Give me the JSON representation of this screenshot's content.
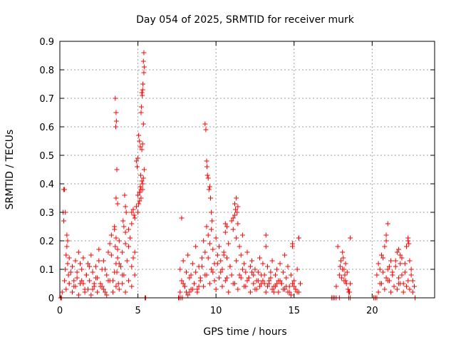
{
  "chart_data": {
    "type": "scatter",
    "title": "Day 054 of 2025, SRMTID for receiver murk",
    "xlabel": "GPS time / hours",
    "ylabel": "SRMTID / TECUs",
    "xlim": [
      0,
      24
    ],
    "ylim": [
      0,
      0.9
    ],
    "grid": true,
    "marker": "+",
    "color": "#ff0000",
    "x_ticks": [
      0,
      5,
      10,
      15,
      20
    ],
    "x_tick_labels": [
      "0",
      "5",
      "10",
      "15",
      "20"
    ],
    "y_ticks": [
      0,
      0.1,
      0.2,
      0.3,
      0.4,
      0.5,
      0.6,
      0.7,
      0.8,
      0.9
    ],
    "y_tick_labels": [
      "0",
      "0.1",
      "0.2",
      "0.3",
      "0.4",
      "0.5",
      "0.6",
      "0.7",
      "0.8",
      "0.9"
    ],
    "series": [
      {
        "x": [
          0.05,
          0.1,
          0.15,
          0.3,
          0.35,
          0.4,
          0.45,
          0.5,
          0.55,
          0.6,
          0.7,
          0.8,
          0.9,
          1.0,
          1.1,
          1.2,
          1.3,
          1.4,
          1.5,
          1.6,
          1.7,
          1.8,
          1.9,
          2.0,
          2.1,
          2.2,
          2.3,
          2.4,
          2.5,
          2.6,
          2.7,
          2.8,
          2.9,
          3.0,
          3.1,
          3.2,
          3.3,
          3.4,
          3.5,
          3.55,
          3.6,
          3.65,
          3.7,
          3.75,
          3.8,
          3.9,
          4.0,
          4.1,
          4.2,
          4.3,
          4.4,
          4.5,
          4.6,
          4.7,
          4.8,
          4.9,
          5.0,
          5.05,
          5.1,
          5.15,
          5.2,
          5.25,
          5.3,
          5.35,
          5.4,
          5.5,
          0.5,
          0.6,
          0.9,
          1.1,
          1.3,
          1.5,
          1.7,
          1.9,
          2.1,
          2.3,
          2.5,
          2.7,
          2.9,
          3.1,
          3.3,
          3.5,
          3.6,
          3.7,
          3.8,
          4.0,
          4.2,
          4.4,
          4.6,
          4.8,
          5.0,
          5.1,
          5.2,
          5.3,
          0.4,
          0.6,
          0.8,
          1.0,
          1.2,
          1.4,
          1.6,
          1.8,
          2.0,
          2.2,
          2.4,
          2.6,
          2.8,
          3.0,
          3.2,
          3.4,
          3.6,
          3.8,
          4.0,
          4.2,
          4.4,
          4.6,
          4.8,
          3.55,
          3.6,
          3.62,
          3.58,
          3.65,
          3.6,
          3.7,
          3.5,
          4.15,
          4.2,
          4.25,
          4.05,
          4.1,
          4.6,
          4.7,
          4.75,
          4.9,
          4.95,
          5.0,
          5.05,
          5.1,
          5.15,
          5.2,
          5.22,
          5.25,
          5.28,
          5.3,
          5.32,
          5.35,
          5.38,
          5.12,
          5.18,
          5.25,
          5.3,
          5.35,
          5.38,
          5.4,
          0.3,
          0.35,
          0.25,
          0.45,
          7.6,
          7.7,
          7.8,
          7.9,
          8.0,
          8.1,
          8.2,
          8.3,
          8.4,
          8.5,
          8.6,
          8.7,
          8.8,
          8.9,
          9.0,
          9.1,
          9.2,
          9.3,
          9.4,
          9.5,
          9.6,
          9.7,
          9.8,
          9.9,
          10.0,
          10.1,
          10.2,
          10.3,
          10.4,
          10.5,
          10.6,
          10.7,
          10.8,
          10.9,
          11.0,
          11.1,
          11.2,
          11.3,
          11.4,
          11.5,
          11.6,
          11.7,
          11.8,
          11.9,
          12.0,
          12.1,
          12.2,
          12.3,
          12.4,
          12.5,
          12.6,
          12.7,
          12.8,
          12.9,
          13.0,
          13.1,
          13.2,
          13.3,
          13.4,
          13.5,
          13.6,
          13.7,
          13.8,
          13.9,
          14.0,
          14.1,
          14.2,
          14.3,
          14.4,
          14.5,
          14.6,
          14.7,
          14.8,
          14.9,
          15.0,
          15.1,
          15.2,
          15.3,
          15.4,
          7.9,
          8.1,
          8.3,
          8.5,
          8.7,
          8.9,
          9.1,
          9.3,
          9.5,
          9.7,
          9.9,
          10.1,
          10.3,
          10.5,
          10.7,
          10.9,
          11.1,
          11.3,
          11.5,
          11.7,
          11.9,
          12.1,
          12.3,
          12.5,
          12.7,
          12.9,
          13.1,
          13.3,
          13.5,
          13.7,
          13.9,
          14.1,
          14.3,
          14.5,
          14.7,
          14.9,
          15.1,
          15.3,
          7.7,
          8.0,
          8.2,
          8.4,
          8.6,
          8.8,
          9.0,
          9.2,
          9.4,
          9.6,
          9.8,
          10.0,
          10.2,
          10.4,
          10.6,
          10.8,
          11.0,
          11.2,
          11.4,
          11.6,
          11.8,
          12.0,
          12.2,
          12.4,
          12.6,
          12.8,
          13.0,
          13.2,
          13.4,
          13.6,
          13.8,
          14.0,
          14.2,
          14.4,
          14.6,
          14.8,
          15.0,
          15.2,
          7.8,
          9.3,
          9.35,
          9.4,
          9.42,
          9.45,
          9.5,
          9.55,
          9.6,
          9.65,
          9.7,
          9.75,
          11.2,
          11.3,
          11.35,
          11.4,
          11.1,
          11.25,
          10.6,
          10.7,
          13.2,
          15.3,
          14.9,
          17.5,
          17.7,
          17.9,
          18.0,
          18.1,
          18.2,
          18.3,
          18.4,
          18.5,
          18.6,
          17.8,
          17.95,
          18.05,
          18.15,
          18.25,
          18.35,
          18.45,
          18.55,
          18.1,
          18.2,
          18.3,
          17.9,
          18.6,
          20.2,
          20.3,
          20.4,
          20.5,
          20.6,
          20.7,
          20.8,
          20.9,
          21.0,
          21.1,
          21.2,
          21.3,
          21.4,
          21.5,
          21.6,
          21.7,
          21.8,
          21.9,
          22.0,
          22.1,
          22.2,
          22.3,
          22.4,
          22.5,
          22.6,
          22.7,
          20.4,
          20.6,
          20.8,
          21.0,
          21.2,
          21.4,
          21.6,
          21.8,
          22.0,
          22.2,
          22.4,
          22.6,
          20.5,
          20.7,
          20.9,
          21.1,
          21.3,
          21.5,
          21.7,
          21.9,
          22.1,
          22.3,
          22.5,
          22.7,
          20.9,
          21.0,
          22.3,
          22.35,
          21.7,
          21.8,
          0.05,
          0.1,
          0.2,
          0.25,
          5.45,
          7.65,
          7.75,
          7.85,
          17.4,
          17.5,
          17.6,
          17.7,
          18.5,
          18.6,
          20.1,
          20.2,
          20.3,
          22.75
        ],
        "y": [
          0.0,
          0.0,
          0.02,
          0.06,
          0.1,
          0.15,
          0.22,
          0.12,
          0.08,
          0.05,
          0.09,
          0.11,
          0.04,
          0.13,
          0.07,
          0.16,
          0.05,
          0.1,
          0.14,
          0.03,
          0.08,
          0.12,
          0.06,
          0.15,
          0.09,
          0.04,
          0.11,
          0.07,
          0.17,
          0.05,
          0.1,
          0.13,
          0.02,
          0.08,
          0.16,
          0.19,
          0.22,
          0.06,
          0.25,
          0.18,
          0.12,
          0.09,
          0.14,
          0.05,
          0.2,
          0.11,
          0.16,
          0.08,
          0.23,
          0.13,
          0.18,
          0.21,
          0.26,
          0.14,
          0.28,
          0.32,
          0.36,
          0.33,
          0.37,
          0.39,
          0.35,
          0.41,
          0.38,
          0.42,
          0.45,
          0.0,
          0.2,
          0.14,
          0.06,
          0.09,
          0.12,
          0.05,
          0.08,
          0.11,
          0.03,
          0.07,
          0.13,
          0.04,
          0.1,
          0.06,
          0.15,
          0.09,
          0.21,
          0.17,
          0.12,
          0.08,
          0.19,
          0.24,
          0.11,
          0.16,
          0.3,
          0.34,
          0.38,
          0.4,
          0.03,
          0.05,
          0.02,
          0.04,
          0.01,
          0.06,
          0.02,
          0.03,
          0.01,
          0.05,
          0.02,
          0.04,
          0.03,
          0.01,
          0.06,
          0.02,
          0.04,
          0.03,
          0.05,
          0.02,
          0.06,
          0.04,
          0.08,
          0.7,
          0.65,
          0.62,
          0.6,
          0.45,
          0.35,
          0.33,
          0.24,
          0.36,
          0.32,
          0.3,
          0.27,
          0.25,
          0.3,
          0.31,
          0.29,
          0.48,
          0.46,
          0.49,
          0.57,
          0.55,
          0.53,
          0.65,
          0.67,
          0.72,
          0.71,
          0.73,
          0.75,
          0.83,
          0.86,
          0.37,
          0.43,
          0.52,
          0.54,
          0.61,
          0.79,
          0.81,
          0.38,
          0.3,
          0.27,
          0.18,
          0.0,
          0.1,
          0.06,
          0.13,
          0.04,
          0.09,
          0.15,
          0.02,
          0.08,
          0.12,
          0.05,
          0.18,
          0.03,
          0.11,
          0.07,
          0.14,
          0.2,
          0.16,
          0.25,
          0.22,
          0.19,
          0.24,
          0.17,
          0.12,
          0.21,
          0.15,
          0.18,
          0.13,
          0.1,
          0.16,
          0.23,
          0.14,
          0.19,
          0.11,
          0.27,
          0.24,
          0.29,
          0.21,
          0.26,
          0.18,
          0.15,
          0.22,
          0.12,
          0.09,
          0.16,
          0.07,
          0.11,
          0.13,
          0.08,
          0.1,
          0.06,
          0.09,
          0.14,
          0.05,
          0.12,
          0.08,
          0.18,
          0.11,
          0.06,
          0.09,
          0.13,
          0.04,
          0.08,
          0.1,
          0.06,
          0.12,
          0.05,
          0.09,
          0.15,
          0.07,
          0.11,
          0.04,
          0.08,
          0.19,
          0.06,
          0.03,
          0.1,
          0.21,
          0.05,
          0.05,
          0.02,
          0.07,
          0.03,
          0.09,
          0.04,
          0.11,
          0.08,
          0.14,
          0.1,
          0.06,
          0.12,
          0.09,
          0.15,
          0.07,
          0.11,
          0.05,
          0.13,
          0.08,
          0.1,
          0.04,
          0.07,
          0.09,
          0.03,
          0.06,
          0.08,
          0.05,
          0.04,
          0.07,
          0.02,
          0.05,
          0.06,
          0.03,
          0.04,
          0.02,
          0.05,
          0.03,
          0.02,
          0.02,
          0.04,
          0.01,
          0.03,
          0.05,
          0.02,
          0.06,
          0.04,
          0.08,
          0.05,
          0.09,
          0.03,
          0.07,
          0.04,
          0.06,
          0.02,
          0.08,
          0.05,
          0.03,
          0.07,
          0.04,
          0.06,
          0.02,
          0.05,
          0.03,
          0.04,
          0.06,
          0.02,
          0.05,
          0.03,
          0.04,
          0.02,
          0.05,
          0.03,
          0.02,
          0.01,
          0.04,
          0.02,
          0.28,
          0.61,
          0.59,
          0.48,
          0.46,
          0.43,
          0.42,
          0.38,
          0.39,
          0.35,
          0.3,
          0.27,
          0.33,
          0.35,
          0.3,
          0.32,
          0.28,
          0.31,
          0.26,
          0.25,
          0.22,
          0.21,
          0.18,
          0.0,
          0.04,
          0.08,
          0.13,
          0.1,
          0.06,
          0.12,
          0.09,
          0.02,
          0.05,
          0.18,
          0.11,
          0.07,
          0.14,
          0.08,
          0.05,
          0.03,
          0.02,
          0.16,
          0.1,
          0.06,
          0.0,
          0.21,
          0.0,
          0.08,
          0.12,
          0.05,
          0.15,
          0.09,
          0.18,
          0.2,
          0.1,
          0.06,
          0.13,
          0.08,
          0.04,
          0.11,
          0.16,
          0.07,
          0.12,
          0.14,
          0.05,
          0.09,
          0.18,
          0.21,
          0.13,
          0.08,
          0.06,
          0.04,
          0.02,
          0.05,
          0.03,
          0.06,
          0.02,
          0.04,
          0.03,
          0.05,
          0.02,
          0.04,
          0.03,
          0.02,
          0.1,
          0.14,
          0.07,
          0.11,
          0.09,
          0.13,
          0.05,
          0.08,
          0.12,
          0.06,
          0.1,
          0.04,
          0.22,
          0.26,
          0.2,
          0.19,
          0.17,
          0.15,
          0.0,
          0.0,
          0.3,
          0.38,
          0.0,
          0.0,
          0.0,
          0.0,
          0.0,
          0.0,
          0.0,
          0.0,
          0.0,
          0.0,
          0.0,
          0.0,
          0.0,
          0.0
        ]
      }
    ]
  }
}
